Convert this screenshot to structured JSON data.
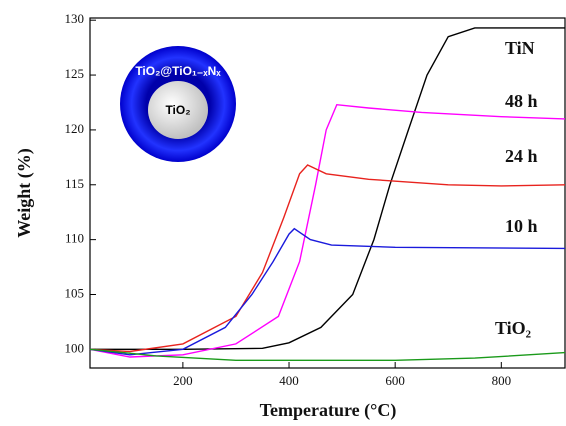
{
  "chart_data": {
    "type": "line",
    "xlabel": "Temperature (°C)",
    "ylabel": "Weight (%)",
    "xlim": [
      25,
      920
    ],
    "ylim": [
      98.3,
      130.2
    ],
    "xticks": [
      200,
      400,
      600,
      800
    ],
    "yticks": [
      100,
      105,
      110,
      115,
      120,
      125,
      130
    ],
    "inset": {
      "shell": "TiO₂@TiO₁₋ₓNₓ",
      "core": "TiO₂"
    },
    "series": [
      {
        "name": "TiN",
        "color": "#000000",
        "x": [
          25,
          200,
          350,
          400,
          460,
          520,
          560,
          590,
          625,
          660,
          700,
          750,
          920
        ],
        "values": [
          100,
          100,
          100.1,
          100.6,
          102,
          105,
          110,
          115,
          120,
          125,
          128.5,
          129.3,
          129.3
        ]
      },
      {
        "name": "48 h",
        "color": "#ff00ff",
        "x": [
          25,
          100,
          200,
          300,
          380,
          420,
          450,
          470,
          490,
          550,
          650,
          800,
          920
        ],
        "values": [
          100,
          99.3,
          99.5,
          100.5,
          103,
          108,
          115,
          120,
          122.3,
          122,
          121.6,
          121.2,
          121
        ]
      },
      {
        "name": "24 h",
        "color": "#e8231e",
        "x": [
          25,
          100,
          200,
          300,
          350,
          390,
          420,
          435,
          470,
          550,
          700,
          800,
          920
        ],
        "values": [
          100,
          99.8,
          100.5,
          103,
          107,
          112,
          116,
          116.8,
          116,
          115.5,
          115,
          114.9,
          115
        ]
      },
      {
        "name": "10 h",
        "color": "#1a1adc",
        "x": [
          25,
          100,
          200,
          280,
          330,
          370,
          400,
          410,
          440,
          480,
          600,
          920
        ],
        "values": [
          100,
          99.5,
          100,
          102,
          105,
          108,
          110.5,
          111,
          110,
          109.5,
          109.3,
          109.2
        ]
      },
      {
        "name": "TiO₂",
        "color": "#1a9a1a",
        "x": [
          25,
          150,
          300,
          600,
          750,
          920
        ],
        "values": [
          100,
          99.4,
          99,
          99,
          99.2,
          99.7
        ]
      }
    ]
  }
}
